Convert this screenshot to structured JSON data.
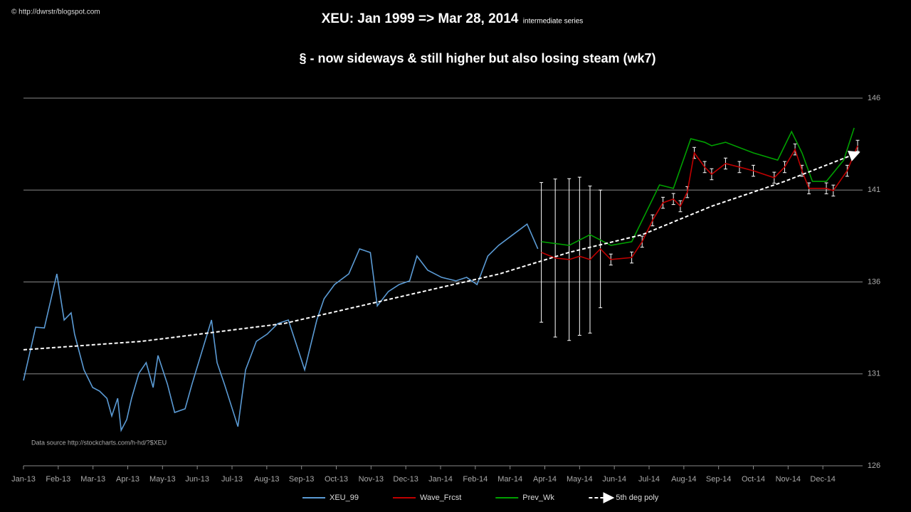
{
  "chart_data": {
    "type": "line",
    "title": "XEU: Jan 1999 => Mar 28, 2014",
    "title_note": "intermediate series",
    "subtitle": "§ - now sideways & still higher but also losing steam (wk7)",
    "annotations": [
      "© http://dwrstr/blogspot.com",
      "Data source http://stockcharts.com/h-hd/?$XEU"
    ],
    "xlim": [
      0,
      24
    ],
    "xticks": [
      {
        "value": 0,
        "label": "Jan-13"
      },
      {
        "value": 1,
        "label": "Feb-13"
      },
      {
        "value": 2,
        "label": "Mar-13"
      },
      {
        "value": 3,
        "label": "Apr-13"
      },
      {
        "value": 4,
        "label": "May-13"
      },
      {
        "value": 5,
        "label": "Jun-13"
      },
      {
        "value": 6,
        "label": "Jul-13"
      },
      {
        "value": 7,
        "label": "Aug-13"
      },
      {
        "value": 8,
        "label": "Sep-13"
      },
      {
        "value": 9,
        "label": "Oct-13"
      },
      {
        "value": 10,
        "label": "Nov-13"
      },
      {
        "value": 11,
        "label": "Dec-13"
      },
      {
        "value": 12,
        "label": "Jan-14"
      },
      {
        "value": 13,
        "label": "Feb-14"
      },
      {
        "value": 14,
        "label": "Mar-14"
      },
      {
        "value": 15,
        "label": "Apr-14"
      },
      {
        "value": 16,
        "label": "May-14"
      },
      {
        "value": 17,
        "label": "Jun-14"
      },
      {
        "value": 18,
        "label": "Jul-14"
      },
      {
        "value": 19,
        "label": "Aug-14"
      },
      {
        "value": 20,
        "label": "Sep-14"
      },
      {
        "value": 21,
        "label": "Oct-14"
      },
      {
        "value": 22,
        "label": "Nov-14"
      },
      {
        "value": 23,
        "label": "Dec-14"
      }
    ],
    "ylim": [
      126,
      146
    ],
    "yticks": [
      126,
      131,
      136,
      141,
      146
    ],
    "grid": true,
    "legend": "bottom",
    "series": [
      {
        "name": "XEU_99",
        "color": "#5b9bd5",
        "style": "solid",
        "x": [
          0,
          0.35,
          0.6,
          0.96,
          1.17,
          1.37,
          1.47,
          1.74,
          1.99,
          2.19,
          2.4,
          2.54,
          2.71,
          2.81,
          2.97,
          3.11,
          3.32,
          3.53,
          3.73,
          3.87,
          4.14,
          4.35,
          4.65,
          4.85,
          5.16,
          5.41,
          5.57,
          5.78,
          6.17,
          6.39,
          6.7,
          7.01,
          7.32,
          7.62,
          7.89,
          8.09,
          8.44,
          8.65,
          8.95,
          9.36,
          9.67,
          9.98,
          10.18,
          10.5,
          10.81,
          11.11,
          11.32,
          11.63,
          12.03,
          12.44,
          12.75,
          13.05,
          13.36,
          13.67,
          14.08,
          14.49,
          14.8
        ],
        "values": [
          130.64,
          133.54,
          133.5,
          136.44,
          133.93,
          134.32,
          133.16,
          131.22,
          130.26,
          130.06,
          129.67,
          128.71,
          129.67,
          127.93,
          128.51,
          129.67,
          131.03,
          131.61,
          130.26,
          132.0,
          130.45,
          128.9,
          129.1,
          130.45,
          132.38,
          133.93,
          131.61,
          130.45,
          128.13,
          131.22,
          132.77,
          133.16,
          133.74,
          133.93,
          132.38,
          131.22,
          133.93,
          135.09,
          135.86,
          136.44,
          137.8,
          137.6,
          134.7,
          135.48,
          135.86,
          136.06,
          137.41,
          136.64,
          136.25,
          136.06,
          136.25,
          135.86,
          137.41,
          137.99,
          138.57,
          139.15,
          137.8
        ]
      },
      {
        "name": "Wave_Frcst",
        "color": "#c00000",
        "style": "solid",
        "error_color": "#ffffff",
        "x": [
          14.9,
          15.3,
          15.7,
          16.0,
          16.3,
          16.6,
          16.9,
          17.5,
          17.8,
          18.1,
          18.4,
          18.7,
          18.9,
          19.1,
          19.3,
          19.6,
          19.8,
          20.2,
          20.6,
          21.0,
          21.6,
          21.9,
          22.2,
          22.4,
          22.6,
          23.1,
          23.3,
          23.7,
          24.0
        ],
        "values": [
          137.61,
          137.3,
          137.22,
          137.4,
          137.22,
          137.8,
          137.22,
          137.33,
          138.19,
          139.35,
          140.31,
          140.51,
          140.12,
          140.89,
          143.02,
          142.25,
          141.86,
          142.44,
          142.25,
          142.05,
          141.67,
          142.25,
          143.21,
          142.05,
          141.09,
          141.09,
          140.97,
          142.05,
          143.41
        ],
        "errors": [
          3.8,
          4.3,
          4.4,
          4.3,
          4.0,
          3.2,
          0.3,
          0.3,
          0.3,
          0.3,
          0.3,
          0.3,
          0.3,
          0.3,
          0.3,
          0.3,
          0.3,
          0.3,
          0.3,
          0.3,
          0.3,
          0.3,
          0.3,
          0.3,
          0.3,
          0.3,
          0.3,
          0.3,
          0.3
        ]
      },
      {
        "name": "Prev_Wk",
        "color": "#00a000",
        "style": "solid",
        "x": [
          14.9,
          15.7,
          16.3,
          16.9,
          17.5,
          17.9,
          18.3,
          18.7,
          19.2,
          19.6,
          19.8,
          20.2,
          21.0,
          21.7,
          22.1,
          22.4,
          22.7,
          23.1,
          23.6,
          23.9
        ],
        "values": [
          138.19,
          137.99,
          138.57,
          137.99,
          138.19,
          139.73,
          141.28,
          141.09,
          143.79,
          143.6,
          143.41,
          143.6,
          143.02,
          142.63,
          144.18,
          143.02,
          141.47,
          141.47,
          142.63,
          144.38
        ]
      },
      {
        "name": "5th deg poly",
        "color": "#ffffff",
        "style": "dashed",
        "x": [
          0,
          3.4,
          7.5,
          10.6,
          13.7,
          15.7,
          17.8,
          19.8,
          21.9,
          24
        ],
        "values": [
          132.31,
          132.77,
          133.74,
          135.09,
          136.44,
          137.61,
          138.57,
          140.12,
          141.47,
          143.02
        ]
      }
    ]
  }
}
